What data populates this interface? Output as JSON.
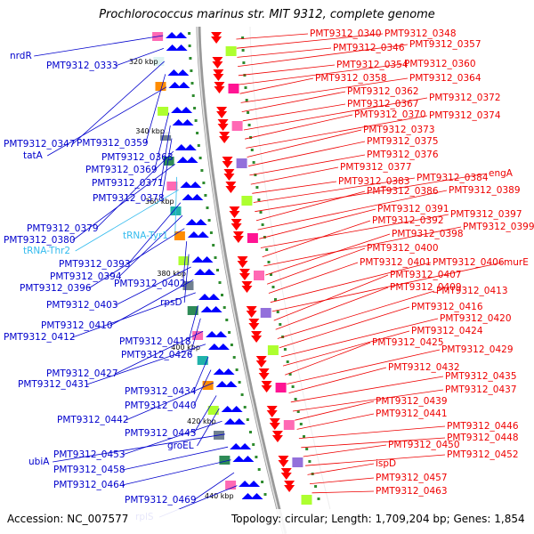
{
  "title": "Prochlorococcus marinus str. MIT 9312, complete genome",
  "footer": {
    "accession": "Accession: NC_007577",
    "topology": "Topology: circular; Length: 1,709,204 bp; Genes: 1,854"
  },
  "kbp_marks": [
    "320 kbp",
    "340 kbp",
    "360 kbp",
    "380 kbp",
    "400 kbp",
    "420 kbp",
    "440 kbp"
  ],
  "colors": {
    "forward_strand": "#0000ff",
    "reverse_strand": "#ff0000",
    "trna": "#33bbee",
    "backbone": "#999999"
  },
  "left_labels": [
    {
      "text": "nrdR",
      "type": "gene"
    },
    {
      "text": "PMT9312_0333",
      "type": "gene"
    },
    {
      "text": "PMT9312_0347",
      "type": "gene"
    },
    {
      "text": "PMT9312_0359",
      "type": "gene"
    },
    {
      "text": "tatA",
      "type": "gene"
    },
    {
      "text": "PMT9312_0363",
      "type": "gene"
    },
    {
      "text": "PMT9312_0369",
      "type": "gene"
    },
    {
      "text": "PMT9312_0371",
      "type": "gene"
    },
    {
      "text": "PMT9312_0378",
      "type": "gene"
    },
    {
      "text": "PMT9312_0379",
      "type": "gene"
    },
    {
      "text": "PMT9312_0380",
      "type": "gene"
    },
    {
      "text": "tRNA-Tyr1",
      "type": "trna"
    },
    {
      "text": "tRNA-Thr2",
      "type": "trna"
    },
    {
      "text": "PMT9312_0393",
      "type": "gene"
    },
    {
      "text": "PMT9312_0394",
      "type": "gene"
    },
    {
      "text": "PMT9312_0396",
      "type": "gene"
    },
    {
      "text": "PMT9312_0402",
      "type": "gene"
    },
    {
      "text": "rpsD",
      "type": "gene"
    },
    {
      "text": "PMT9312_0403",
      "type": "gene"
    },
    {
      "text": "PMT9312_0410",
      "type": "gene"
    },
    {
      "text": "PMT9312_0412",
      "type": "gene"
    },
    {
      "text": "PMT9312_0418",
      "type": "gene"
    },
    {
      "text": "PMT9312_0426",
      "type": "gene"
    },
    {
      "text": "PMT9312_0427",
      "type": "gene"
    },
    {
      "text": "PMT9312_0431",
      "type": "gene"
    },
    {
      "text": "PMT9312_0434",
      "type": "gene"
    },
    {
      "text": "PMT9312_0440",
      "type": "gene"
    },
    {
      "text": "PMT9312_0442",
      "type": "gene"
    },
    {
      "text": "PMT9312_0445",
      "type": "gene"
    },
    {
      "text": "groEL",
      "type": "gene"
    },
    {
      "text": "PMT9312_0453",
      "type": "gene"
    },
    {
      "text": "ubiA",
      "type": "gene"
    },
    {
      "text": "PMT9312_0458",
      "type": "gene"
    },
    {
      "text": "PMT9312_0464",
      "type": "gene"
    },
    {
      "text": "PMT9312_0469",
      "type": "gene"
    },
    {
      "text": "rplS",
      "type": "gene"
    }
  ],
  "right_labels": [
    {
      "text": "PMT9312_0340"
    },
    {
      "text": "PMT9312_0348"
    },
    {
      "text": "PMT9312_0346"
    },
    {
      "text": "PMT9312_0357"
    },
    {
      "text": "PMT9312_0354"
    },
    {
      "text": "PMT9312_0360"
    },
    {
      "text": "PMT9312_0358"
    },
    {
      "text": "PMT9312_0364"
    },
    {
      "text": "PMT9312_0362"
    },
    {
      "text": "PMT9312_0367"
    },
    {
      "text": "PMT9312_0372"
    },
    {
      "text": "PMT9312_0370"
    },
    {
      "text": "PMT9312_0374"
    },
    {
      "text": "PMT9312_0373"
    },
    {
      "text": "PMT9312_0375"
    },
    {
      "text": "PMT9312_0376"
    },
    {
      "text": "PMT9312_0377"
    },
    {
      "text": "PMT9312_0383"
    },
    {
      "text": "PMT9312_0384"
    },
    {
      "text": "engA"
    },
    {
      "text": "PMT9312_0386"
    },
    {
      "text": "PMT9312_0389"
    },
    {
      "text": "PMT9312_0391"
    },
    {
      "text": "PMT9312_0397"
    },
    {
      "text": "PMT9312_0392"
    },
    {
      "text": "PMT9312_0399"
    },
    {
      "text": "PMT9312_0398"
    },
    {
      "text": "PMT9312_0400"
    },
    {
      "text": "PMT9312_0401"
    },
    {
      "text": "PMT9312_0406"
    },
    {
      "text": "murE"
    },
    {
      "text": "PMT9312_0407"
    },
    {
      "text": "PMT9312_0409"
    },
    {
      "text": "PMT9312_0413"
    },
    {
      "text": "PMT9312_0416"
    },
    {
      "text": "PMT9312_0420"
    },
    {
      "text": "PMT9312_0424"
    },
    {
      "text": "PMT9312_0425"
    },
    {
      "text": "PMT9312_0429"
    },
    {
      "text": "PMT9312_0432"
    },
    {
      "text": "PMT9312_0435"
    },
    {
      "text": "PMT9312_0437"
    },
    {
      "text": "PMT9312_0439"
    },
    {
      "text": "PMT9312_0441"
    },
    {
      "text": "PMT9312_0446"
    },
    {
      "text": "PMT9312_0448"
    },
    {
      "text": "PMT9312_0450"
    },
    {
      "text": "PMT9312_0452"
    },
    {
      "text": "ispD"
    },
    {
      "text": "PMT9312_0457"
    },
    {
      "text": "PMT9312_0463"
    }
  ]
}
